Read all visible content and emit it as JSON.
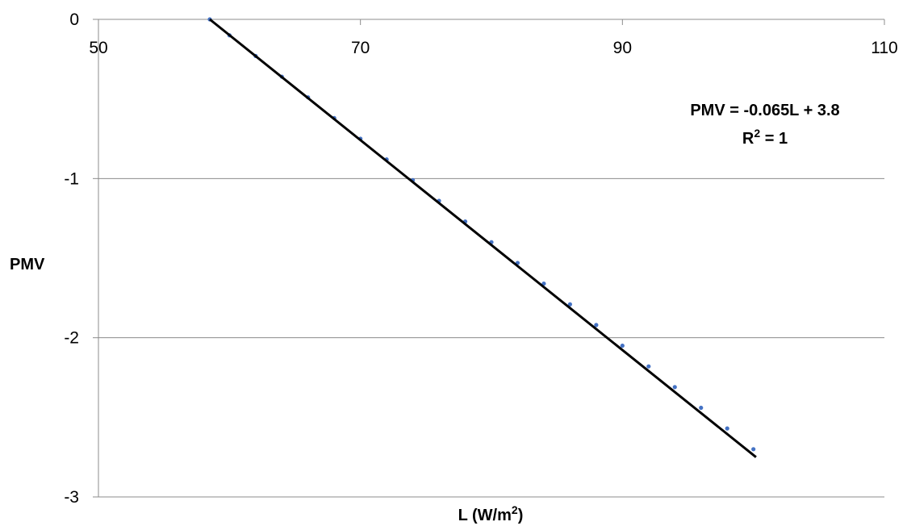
{
  "chart_data": {
    "type": "scatter",
    "title": "",
    "xlabel": "L (W/m",
    "xlabel_sup": "2",
    "xlabel_close": ")",
    "ylabel": "PMV",
    "xlim": [
      50,
      110
    ],
    "ylim": [
      -3,
      0
    ],
    "x_ticks": [
      "50",
      "70",
      "90",
      "110"
    ],
    "y_ticks": [
      "0",
      "-1",
      "-2",
      "-3"
    ],
    "grid": "horizontal",
    "legend": "none",
    "series": [
      {
        "marker_color": "#4472C4",
        "x": [
          58.5,
          60,
          62,
          64,
          66,
          68,
          70,
          72,
          74,
          76,
          78,
          80,
          82,
          84,
          86,
          88,
          90,
          92,
          94,
          96,
          98,
          100
        ],
        "y": [
          0.0,
          -0.1,
          -0.23,
          -0.36,
          -0.49,
          -0.62,
          -0.75,
          -0.88,
          -1.01,
          -1.14,
          -1.27,
          -1.4,
          -1.53,
          -1.66,
          -1.79,
          -1.92,
          -2.05,
          -2.18,
          -2.31,
          -2.44,
          -2.57,
          -2.7
        ]
      }
    ],
    "trendline": {
      "color": "#000000",
      "x_start": 58.5,
      "x_end": 100.2,
      "y_start": 0.0,
      "y_end": -2.75
    },
    "annotations": {
      "equation": "PMV = -0.065L + 3.8",
      "r2_prefix": "R",
      "r2_sup": "2",
      "r2_suffix": " = 1"
    }
  }
}
